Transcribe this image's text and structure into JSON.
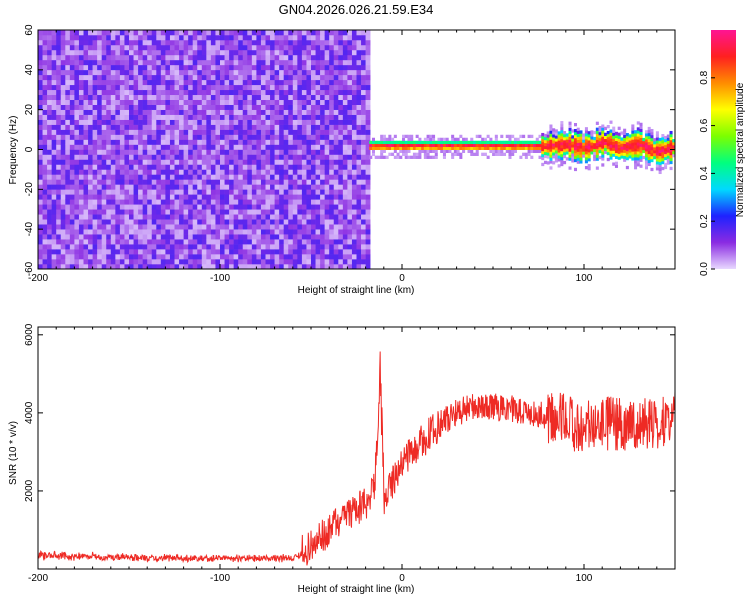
{
  "figure": {
    "title": "GN04.2026.026.21.59.E34"
  },
  "chart_data": [
    {
      "type": "heatmap",
      "xlabel": "Height of straight line (km)",
      "ylabel": "Frequency (Hz)",
      "xlim": [
        -200,
        150
      ],
      "ylim": [
        -60,
        60
      ],
      "x_ticks": [
        -200,
        -100,
        0,
        100
      ],
      "y_ticks": [
        -60,
        -40,
        -20,
        0,
        20,
        40,
        60
      ],
      "grid": false,
      "colorbar": {
        "label": "Normalized spectral amplitude",
        "range": [
          0,
          1
        ],
        "ticks": [
          0.0,
          0.2,
          0.4,
          0.6,
          0.8
        ],
        "colormap": [
          "#e8d8ff",
          "#8a2be2",
          "#1e22ff",
          "#00d9ff",
          "#00ff7f",
          "#7cff00",
          "#ffff00",
          "#ff8c00",
          "#ff2020",
          "#ff1493"
        ]
      },
      "regions": [
        {
          "x_range": [
            -200,
            -18
          ],
          "y_range": [
            -60,
            60
          ],
          "amplitude_range": [
            0.05,
            0.25
          ]
        },
        {
          "x_range": [
            -18,
            150
          ],
          "y_range": [
            -3,
            5
          ],
          "center_freq_hz": 1,
          "amplitude_range": [
            0.4,
            0.95
          ]
        }
      ],
      "ridge_center_freq": {
        "x": [
          -18,
          0,
          20,
          40,
          60,
          80,
          90,
          100,
          110,
          120,
          130,
          140,
          150
        ],
        "freq_hz": [
          1,
          1,
          1,
          1,
          1,
          1,
          2,
          0,
          3,
          0,
          2,
          -2,
          1
        ]
      }
    },
    {
      "type": "line",
      "xlabel": "Height of straight line (km)",
      "ylabel": "SNR (10 * v/v)",
      "xlim": [
        -200,
        150
      ],
      "ylim": [
        0,
        6200
      ],
      "x_ticks": [
        -200,
        -100,
        0,
        100
      ],
      "y_ticks": [
        2000,
        4000,
        6000
      ],
      "grid": false,
      "series": [
        {
          "color": "#ee2a24",
          "x": [
            -200,
            -180,
            -160,
            -140,
            -120,
            -100,
            -80,
            -60,
            -50,
            -40,
            -30,
            -20,
            -15,
            -12,
            -10,
            -5,
            0,
            10,
            20,
            30,
            40,
            50,
            60,
            70,
            80,
            90,
            100,
            110,
            120,
            130,
            140,
            150
          ],
          "y": [
            400,
            380,
            350,
            330,
            310,
            300,
            300,
            310,
            600,
            1000,
            1300,
            1700,
            2100,
            4800,
            1800,
            2200,
            2700,
            3200,
            3700,
            4000,
            4200,
            4150,
            4100,
            4000,
            3900,
            3800,
            3600,
            3750,
            3700,
            3800,
            3750,
            3900
          ]
        }
      ]
    }
  ]
}
